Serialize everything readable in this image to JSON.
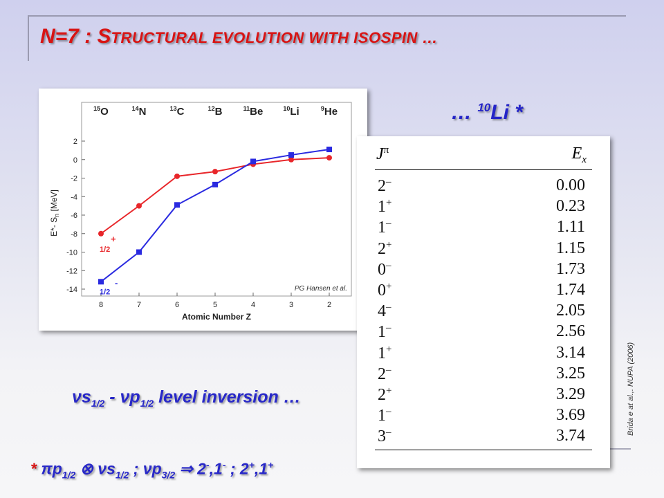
{
  "title": {
    "lead": "N=7 : S",
    "rest": "tructural evolution with isospin …"
  },
  "li_heading": {
    "prefix": "… ",
    "mass": "10",
    "element": "Li *"
  },
  "inversion_text": {
    "nu1": "νs",
    "sub1": "1/2",
    "mid": " - νp",
    "sub2": "1/2",
    "tail": " level inversion …"
  },
  "citation": "Brida e at al.,. NUPA (2006)",
  "footnote": {
    "star": "* ",
    "p1": "πp",
    "s1": "1/2",
    "p2": " ⊗ νs",
    "s2": "1/2",
    "p3": " ; νp",
    "s3": "3/2",
    "p4": " ⇒ 2",
    "sp1": "-",
    "p5": ",1",
    "sp2": "-",
    "p6": " ; 2",
    "sp3": "+",
    "p7": ",1",
    "sp4": "+"
  },
  "chart_data": {
    "type": "line",
    "nuclei": [
      {
        "mass": "15",
        "symbol": "O"
      },
      {
        "mass": "14",
        "symbol": "N"
      },
      {
        "mass": "13",
        "symbol": "C"
      },
      {
        "mass": "12",
        "symbol": "B"
      },
      {
        "mass": "11",
        "symbol": "Be"
      },
      {
        "mass": "10",
        "symbol": "Li"
      },
      {
        "mass": "9",
        "symbol": "He"
      }
    ],
    "x": [
      8,
      7,
      6,
      5,
      4,
      3,
      2
    ],
    "xlabel": "Atomic Number Z",
    "ylabel": "E*- S",
    "ylabel_sub": "n",
    "ylabel_unit": " [MeV]",
    "xlim": [
      8,
      2
    ],
    "ylim": [
      -14,
      2
    ],
    "yticks": [
      2,
      0,
      -2,
      -4,
      -6,
      -8,
      -10,
      -12,
      -14
    ],
    "grid": false,
    "series": [
      {
        "label": "1/2",
        "label_sup": "+",
        "color": "#e8262a",
        "marker": "circle",
        "values": [
          -8.0,
          -5.0,
          -1.8,
          -1.3,
          -0.5,
          0.0,
          0.2
        ]
      },
      {
        "label": "1/2",
        "label_sup": "-",
        "color": "#2a2ae0",
        "marker": "square",
        "values": [
          -13.2,
          -10.0,
          -4.9,
          -2.7,
          -0.2,
          0.5,
          1.1
        ]
      }
    ],
    "annotation": "PG Hansen et al."
  },
  "table": {
    "header_j": "J",
    "header_j_sup": "π",
    "header_e": "E",
    "header_e_sub": "x",
    "rows": [
      {
        "j": "2",
        "parity": "–",
        "ex": "0.00"
      },
      {
        "j": "1",
        "parity": "+",
        "ex": "0.23"
      },
      {
        "j": "1",
        "parity": "–",
        "ex": "1.11"
      },
      {
        "j": "2",
        "parity": "+",
        "ex": "1.15"
      },
      {
        "j": "0",
        "parity": "–",
        "ex": "1.73"
      },
      {
        "j": "0",
        "parity": "+",
        "ex": "1.74"
      },
      {
        "j": "4",
        "parity": "–",
        "ex": "2.05"
      },
      {
        "j": "1",
        "parity": "–",
        "ex": "2.56"
      },
      {
        "j": "1",
        "parity": "+",
        "ex": "3.14"
      },
      {
        "j": "2",
        "parity": "–",
        "ex": "3.25"
      },
      {
        "j": "2",
        "parity": "+",
        "ex": "3.29"
      },
      {
        "j": "1",
        "parity": "–",
        "ex": "3.69"
      },
      {
        "j": "3",
        "parity": "–",
        "ex": "3.74"
      }
    ]
  }
}
